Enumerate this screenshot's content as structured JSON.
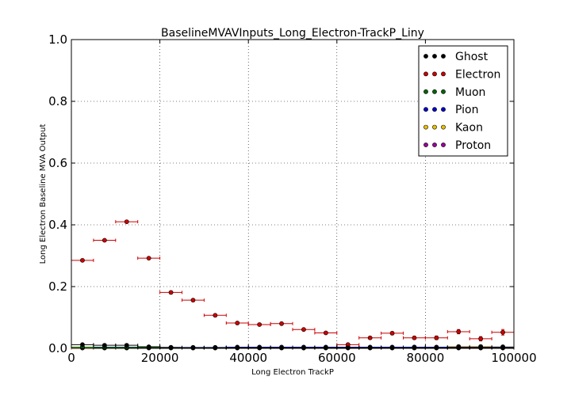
{
  "chart_data": {
    "type": "scatter",
    "title": "BaselineMVAVInputs_Long_Electron-TrackP_Liny",
    "xlabel": "Long Electron TrackP",
    "ylabel": "Long Electron Baseline MVA Output",
    "xlim": [
      0,
      100000
    ],
    "ylim": [
      0,
      1.0
    ],
    "x_ticks": [
      0,
      20000,
      40000,
      60000,
      80000,
      100000
    ],
    "x_tick_labels": [
      "0",
      "20000",
      "40000",
      "60000",
      "80000",
      "100000"
    ],
    "y_ticks": [
      0,
      0.2,
      0.4,
      0.6,
      0.8,
      1.0
    ],
    "y_tick_labels": [
      "0.0",
      "0.2",
      "0.4",
      "0.6",
      "0.8",
      "1.0"
    ],
    "grid": true,
    "legend_position": "top-right",
    "bin_width": 5000,
    "x": [
      2500,
      7500,
      12500,
      17500,
      22500,
      27500,
      32500,
      37500,
      42500,
      47500,
      52500,
      57500,
      62500,
      67500,
      72500,
      77500,
      82500,
      87500,
      92500,
      97500
    ],
    "series": [
      {
        "name": "Ghost",
        "color": "#000000",
        "values": [
          0.012,
          0.01,
          0.01,
          0.005,
          0.003,
          0.002,
          0.002,
          0.002,
          0.002,
          0.002,
          0.002,
          0.002,
          0.002,
          0.002,
          0.002,
          0.002,
          0.002,
          0.002,
          0.002,
          0.002
        ]
      },
      {
        "name": "Electron",
        "color": "#cc0000",
        "values": [
          0.285,
          0.35,
          0.41,
          0.292,
          0.181,
          0.156,
          0.107,
          0.082,
          0.077,
          0.08,
          0.061,
          0.05,
          0.012,
          0.034,
          0.049,
          0.034,
          0.034,
          0.054,
          0.031,
          0.052
        ],
        "errors": [
          0.003,
          0.003,
          0.004,
          0.003,
          0.003,
          0.003,
          0.003,
          0.003,
          0.003,
          0.003,
          0.003,
          0.004,
          0.004,
          0.004,
          0.005,
          0.005,
          0.006,
          0.007,
          0.007,
          0.009
        ]
      },
      {
        "name": "Muon",
        "color": "#006600",
        "values": [
          0.004,
          0.003,
          0.003,
          0.003,
          0.002,
          0.002,
          0.002,
          0.002,
          0.002,
          0.002,
          0.002,
          0.002,
          0.002,
          0.002,
          0.002,
          0.002,
          0.002,
          0.002,
          0.002,
          0.002
        ]
      },
      {
        "name": "Pion",
        "color": "#0000cc",
        "values": [
          0.004,
          0.004,
          0.004,
          0.003,
          0.003,
          0.003,
          0.003,
          0.004,
          0.004,
          0.004,
          0.004,
          0.004,
          0.004,
          0.004,
          0.004,
          0.004,
          0.004,
          0.004,
          0.004,
          0.004
        ]
      },
      {
        "name": "Kaon",
        "color": "#e6c000",
        "values": [
          0.002,
          0.002,
          0.002,
          0.002,
          0.002,
          0.002,
          0.002,
          0.002,
          0.002,
          0.002,
          0.002,
          0.002,
          0.002,
          0.003,
          0.003,
          0.004,
          0.003,
          0.006,
          0.006,
          0.005
        ]
      },
      {
        "name": "Proton",
        "color": "#990099",
        "values": [
          0.001,
          0.001,
          0.001,
          0.001,
          0.001,
          0.001,
          0.001,
          0.001,
          0.001,
          0.001,
          0.001,
          0.001,
          0.001,
          0.001,
          0.001,
          0.001,
          0.001,
          0.001,
          0.001,
          0.001
        ]
      }
    ]
  }
}
